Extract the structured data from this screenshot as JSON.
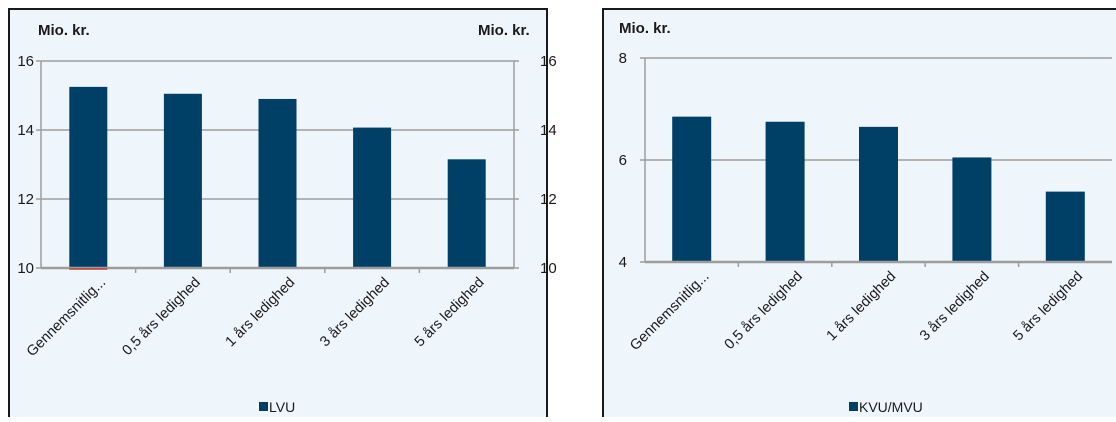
{
  "colors": {
    "bar": "#004066",
    "panel_bg": "#eef5fb",
    "gridline": "#9d9d9d",
    "border": "#1a1a1a",
    "text": "#1a1a1a",
    "baseline_accent": "#c0392b"
  },
  "chart_data": [
    {
      "type": "bar",
      "title": "",
      "ylabel_left": "Mio. kr.",
      "ylabel_right": "Mio. kr.",
      "categories": [
        "Gennemsnitlig...",
        "0,5 års ledighed",
        "1 års ledighed",
        "3 års ledighed",
        "5 års ledighed"
      ],
      "series": [
        {
          "name": "LVU",
          "values": [
            15.25,
            15.05,
            14.9,
            14.07,
            13.15
          ]
        }
      ],
      "ylim": [
        10,
        16
      ],
      "yticks": [
        "10",
        "12",
        "14",
        "16"
      ],
      "ytick_values": [
        10,
        12,
        14,
        16
      ],
      "grid": true,
      "legend_position": "bottom"
    },
    {
      "type": "bar",
      "title": "",
      "ylabel_left": "Mio. kr.",
      "categories": [
        "Gennemsnitlig...",
        "0,5 års ledighed",
        "1 års ledighed",
        "3 års ledighed",
        "5 års ledighed"
      ],
      "series": [
        {
          "name": "KVU/MVU",
          "values": [
            6.85,
            6.75,
            6.65,
            6.05,
            5.38
          ]
        }
      ],
      "ylim": [
        4,
        8
      ],
      "yticks": [
        "4",
        "6",
        "8"
      ],
      "ytick_values": [
        4,
        6,
        8
      ],
      "grid": true,
      "legend_position": "bottom"
    }
  ]
}
